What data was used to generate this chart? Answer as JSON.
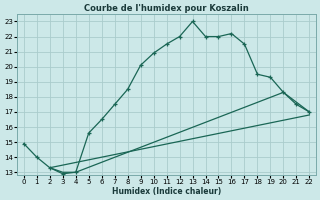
{
  "title": "Courbe de l'humidex pour Koszalin",
  "xlabel": "Humidex (Indice chaleur)",
  "bg_color": "#cce8e8",
  "grid_color": "#aacccc",
  "line_color": "#1a6655",
  "xlim": [
    -0.5,
    22.5
  ],
  "ylim": [
    12.8,
    23.5
  ],
  "xticks": [
    0,
    1,
    2,
    3,
    4,
    5,
    6,
    7,
    8,
    9,
    10,
    11,
    12,
    13,
    14,
    15,
    16,
    17,
    18,
    19,
    20,
    21,
    22
  ],
  "yticks": [
    13,
    14,
    15,
    16,
    17,
    18,
    19,
    20,
    21,
    22,
    23
  ],
  "line1_x": [
    0,
    1,
    2,
    3,
    4,
    5,
    6,
    7,
    8,
    9,
    10,
    11,
    12,
    13,
    14,
    15,
    16,
    17,
    18,
    19,
    20,
    21,
    22
  ],
  "line1_y": [
    14.9,
    14.0,
    13.3,
    12.9,
    13.0,
    15.6,
    16.5,
    17.5,
    18.5,
    20.1,
    20.9,
    21.5,
    22.0,
    23.0,
    22.0,
    22.0,
    22.2,
    21.5,
    19.5,
    19.3,
    18.3,
    17.5,
    17.0
  ],
  "line2_x": [
    2,
    3,
    4,
    20,
    22
  ],
  "line2_y": [
    13.3,
    13.0,
    13.0,
    18.3,
    17.0
  ],
  "line3_x": [
    2,
    22
  ],
  "line3_y": [
    13.3,
    16.8
  ],
  "title_fontsize": 6.0,
  "label_fontsize": 5.5,
  "tick_fontsize": 5.0
}
